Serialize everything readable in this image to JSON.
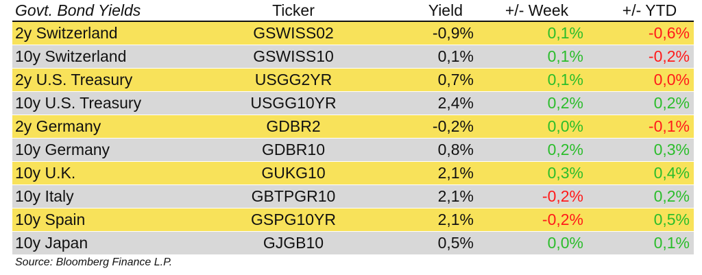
{
  "table": {
    "headers": {
      "name": "Govt. Bond Yields",
      "ticker": "Ticker",
      "yield": "Yield",
      "week": "+/- Week",
      "ytd": "+/- YTD"
    },
    "rows": [
      {
        "name": "2y Switzerland",
        "ticker": "GSWISS02",
        "yield": "-0,9%",
        "week": "0,1%",
        "ytd": "-0,6%"
      },
      {
        "name": "10y Switzerland",
        "ticker": "GSWISS10",
        "yield": "0,1%",
        "week": "0,1%",
        "ytd": "-0,2%"
      },
      {
        "name": "2y U.S. Treasury",
        "ticker": "USGG2YR",
        "yield": "0,7%",
        "week": "0,1%",
        "ytd": "0,0%"
      },
      {
        "name": "10y U.S. Treasury",
        "ticker": "USGG10YR",
        "yield": "2,4%",
        "week": "0,2%",
        "ytd": "0,2%"
      },
      {
        "name": "2y Germany",
        "ticker": "GDBR2",
        "yield": "-0,2%",
        "week": "0,0%",
        "ytd": "-0,1%"
      },
      {
        "name": "10y Germany",
        "ticker": "GDBR10",
        "yield": "0,8%",
        "week": "0,2%",
        "ytd": "0,3%"
      },
      {
        "name": "10y U.K.",
        "ticker": "GUKG10",
        "yield": "2,1%",
        "week": "0,3%",
        "ytd": "0,4%"
      },
      {
        "name": "10y Italy",
        "ticker": "GBTPGR10",
        "yield": "2,1%",
        "week": "-0,2%",
        "ytd": "0,2%"
      },
      {
        "name": "10y Spain",
        "ticker": "GSPG10YR",
        "yield": "2,1%",
        "week": "-0,2%",
        "ytd": "0,5%"
      },
      {
        "name": "10y Japan",
        "ticker": "GJGB10",
        "yield": "0,5%",
        "week": "0,0%",
        "ytd": "0,1%"
      }
    ],
    "colors": {
      "row_highlight": "#f8e25a",
      "row_alt": "#d8d8d8",
      "positive": "#2bbd2b",
      "negative": "#ff1a1a",
      "text": "#111111"
    }
  },
  "footer": {
    "source": "Source: Bloomberg Finance L.P."
  }
}
